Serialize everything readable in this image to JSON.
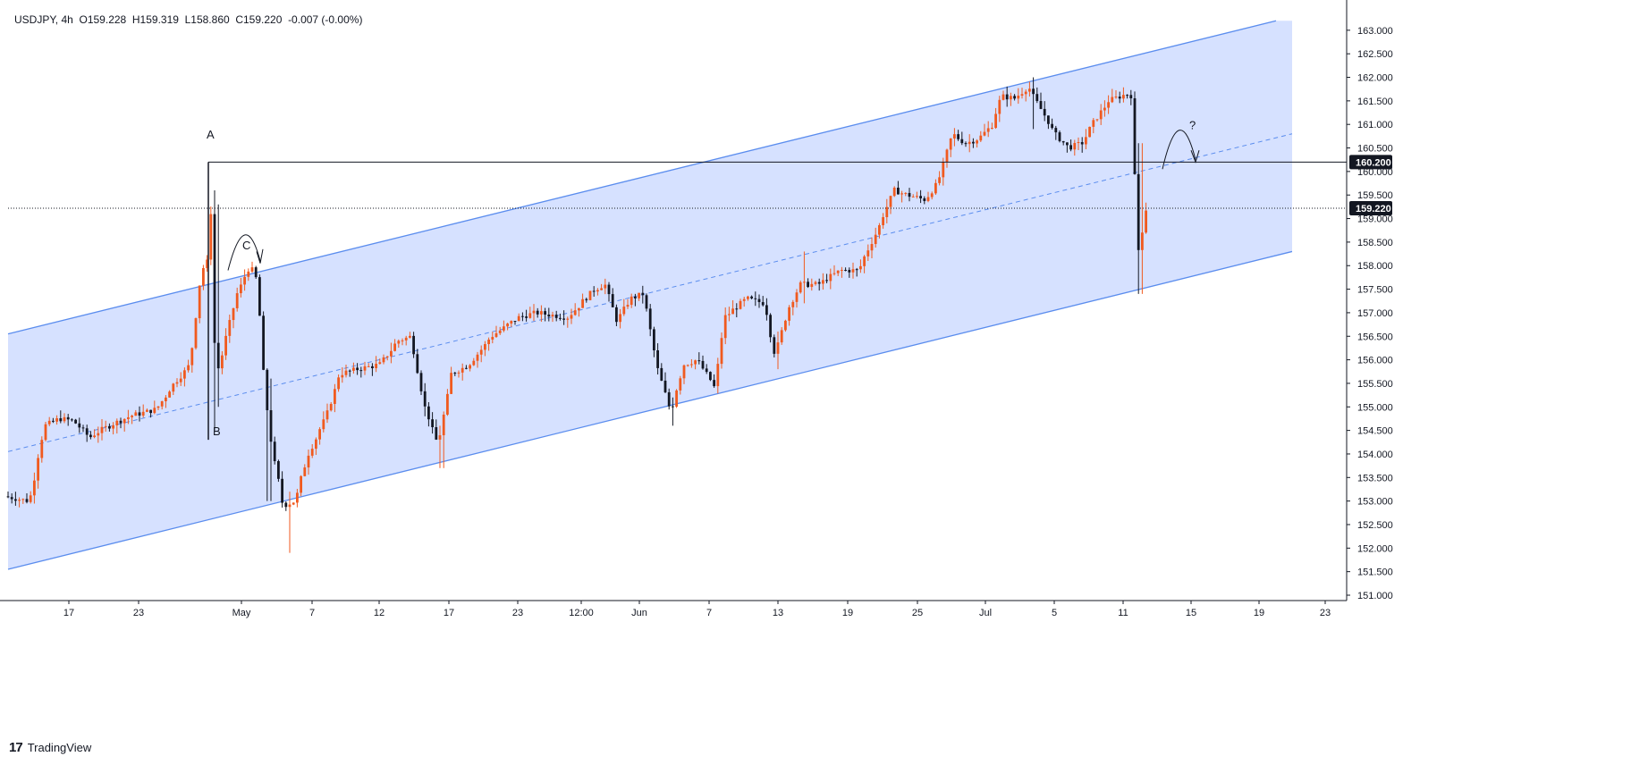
{
  "legend": {
    "symbol": "USDJPY",
    "interval": "4h",
    "open": "O159.228",
    "high": "H159.319",
    "low": "L158.860",
    "close": "C159.220",
    "change": "-0.007 (-0.00%)"
  },
  "branding": {
    "logo_glyph": "17",
    "name": "TradingView"
  },
  "price_tags": {
    "level": "160.200",
    "last": "159.220"
  },
  "annotations": {
    "a": "A",
    "b": "B",
    "c": "C",
    "question": "?"
  },
  "colors": {
    "up": "#f05a1f",
    "down": "#131722",
    "channel_fill": "#cfdcff",
    "channel_line": "#5b8dee",
    "axis": "#131722",
    "grid": "#f0f3fa"
  },
  "chart_data": {
    "type": "candlestick",
    "symbol": "USDJPY",
    "timeframe": "4h",
    "ylim": [
      150.7,
      163.2
    ],
    "y_ticks": [
      "151.000",
      "151.500",
      "152.000",
      "152.500",
      "153.000",
      "153.500",
      "154.000",
      "154.500",
      "155.000",
      "155.500",
      "156.000",
      "156.500",
      "157.000",
      "157.500",
      "158.000",
      "158.500",
      "159.000",
      "159.500",
      "160.000",
      "160.500",
      "161.000",
      "161.500",
      "162.000",
      "162.500",
      "163.000"
    ],
    "x_ticks": [
      "17",
      "23",
      "May",
      "7",
      "12",
      "17",
      "23",
      "12:00",
      "Jun",
      "7",
      "13",
      "19",
      "25",
      "Jul",
      "5",
      "11",
      "15",
      "19",
      "23"
    ],
    "horizontal_level": 160.2,
    "last_price": 159.22,
    "channel": {
      "upper": [
        [
          0,
          156.55
        ],
        [
          1418,
          163.2
        ]
      ],
      "lower": [
        [
          0,
          151.55
        ],
        [
          1436,
          158.3
        ]
      ],
      "middle": [
        [
          0,
          154.05
        ],
        [
          1436,
          160.8
        ]
      ]
    },
    "key_points": [
      {
        "label": "A",
        "price": 160.2
      },
      {
        "label": "B",
        "price": 154.6
      },
      {
        "label": "C",
        "price": 158.0
      }
    ],
    "anchors": [
      {
        "p": 0,
        "price": 153.1
      },
      {
        "p": 28,
        "price": 153.0
      },
      {
        "p": 45,
        "price": 154.6
      },
      {
        "p": 62,
        "price": 154.75
      },
      {
        "p": 78,
        "price": 154.7
      },
      {
        "p": 95,
        "price": 154.35
      },
      {
        "p": 112,
        "price": 154.55
      },
      {
        "p": 140,
        "price": 154.8
      },
      {
        "p": 170,
        "price": 154.95
      },
      {
        "p": 190,
        "price": 155.5
      },
      {
        "p": 208,
        "price": 155.9
      },
      {
        "p": 220,
        "price": 157.9
      },
      {
        "p": 228,
        "price": 158.1
      },
      {
        "p": 232,
        "price": 159.4
      },
      {
        "p": 236,
        "price": 155.6
      },
      {
        "p": 246,
        "price": 156.3
      },
      {
        "p": 260,
        "price": 157.4
      },
      {
        "p": 275,
        "price": 158.0
      },
      {
        "p": 282,
        "price": 157.7
      },
      {
        "p": 292,
        "price": 155.3
      },
      {
        "p": 300,
        "price": 154.0
      },
      {
        "p": 312,
        "price": 152.9
      },
      {
        "p": 325,
        "price": 153.0
      },
      {
        "p": 340,
        "price": 154.0
      },
      {
        "p": 360,
        "price": 154.8
      },
      {
        "p": 375,
        "price": 155.7
      },
      {
        "p": 395,
        "price": 155.8
      },
      {
        "p": 420,
        "price": 155.9
      },
      {
        "p": 440,
        "price": 156.4
      },
      {
        "p": 455,
        "price": 156.5
      },
      {
        "p": 470,
        "price": 155.0
      },
      {
        "p": 485,
        "price": 154.2
      },
      {
        "p": 500,
        "price": 155.7
      },
      {
        "p": 520,
        "price": 155.9
      },
      {
        "p": 545,
        "price": 156.5
      },
      {
        "p": 575,
        "price": 156.9
      },
      {
        "p": 595,
        "price": 157.0
      },
      {
        "p": 630,
        "price": 156.9
      },
      {
        "p": 660,
        "price": 157.5
      },
      {
        "p": 672,
        "price": 157.6
      },
      {
        "p": 685,
        "price": 156.8
      },
      {
        "p": 700,
        "price": 157.3
      },
      {
        "p": 715,
        "price": 157.4
      },
      {
        "p": 728,
        "price": 156.0
      },
      {
        "p": 745,
        "price": 154.9
      },
      {
        "p": 760,
        "price": 155.9
      },
      {
        "p": 775,
        "price": 156.0
      },
      {
        "p": 795,
        "price": 155.4
      },
      {
        "p": 805,
        "price": 156.9
      },
      {
        "p": 830,
        "price": 157.3
      },
      {
        "p": 850,
        "price": 157.2
      },
      {
        "p": 862,
        "price": 156.1
      },
      {
        "p": 875,
        "price": 157.0
      },
      {
        "p": 890,
        "price": 157.6
      },
      {
        "p": 910,
        "price": 157.6
      },
      {
        "p": 935,
        "price": 157.9
      },
      {
        "p": 955,
        "price": 157.9
      },
      {
        "p": 975,
        "price": 158.7
      },
      {
        "p": 995,
        "price": 159.6
      },
      {
        "p": 1010,
        "price": 159.5
      },
      {
        "p": 1030,
        "price": 159.4
      },
      {
        "p": 1045,
        "price": 159.8
      },
      {
        "p": 1060,
        "price": 160.8
      },
      {
        "p": 1075,
        "price": 160.6
      },
      {
        "p": 1090,
        "price": 160.7
      },
      {
        "p": 1105,
        "price": 161.0
      },
      {
        "p": 1115,
        "price": 161.6
      },
      {
        "p": 1130,
        "price": 161.55
      },
      {
        "p": 1145,
        "price": 161.8
      },
      {
        "p": 1160,
        "price": 161.3
      },
      {
        "p": 1175,
        "price": 160.8
      },
      {
        "p": 1190,
        "price": 160.5
      },
      {
        "p": 1205,
        "price": 160.6
      },
      {
        "p": 1220,
        "price": 161.1
      },
      {
        "p": 1235,
        "price": 161.5
      },
      {
        "p": 1255,
        "price": 161.65
      },
      {
        "p": 1262,
        "price": 161.6
      },
      {
        "p": 1266,
        "price": 158.5
      },
      {
        "p": 1270,
        "price": 158.2
      },
      {
        "p": 1274,
        "price": 159.2
      }
    ]
  }
}
